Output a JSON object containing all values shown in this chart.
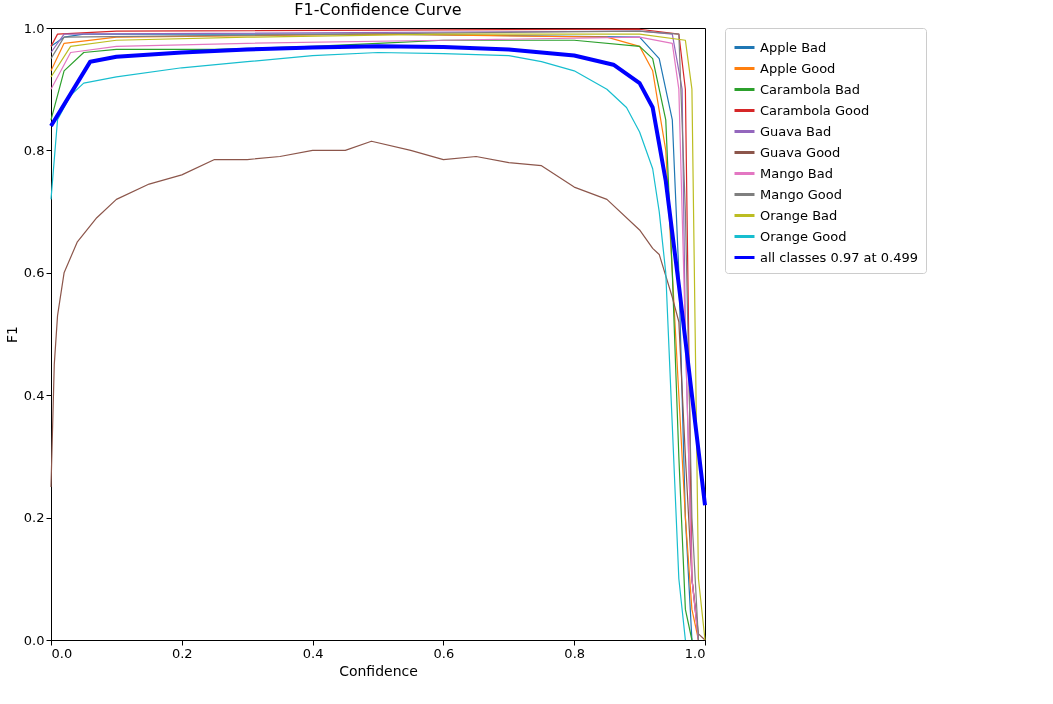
{
  "chart_data": {
    "type": "line",
    "title": "F1-Confidence Curve",
    "xlabel": "Confidence",
    "ylabel": "F1",
    "xlim": [
      0,
      1
    ],
    "ylim": [
      0,
      1
    ],
    "xticks": [
      {
        "value": 0,
        "label": "0.0"
      },
      0.2,
      0.4,
      0.6,
      0.8,
      {
        "value": 1,
        "label": "1.0"
      }
    ],
    "yticks": [
      {
        "value": 0,
        "label": "0.0"
      },
      0.2,
      0.4,
      0.6,
      0.8,
      {
        "value": 1,
        "label": "1.0"
      }
    ],
    "grid": false,
    "legend": "top right",
    "marker": "none",
    "line_style": "solid",
    "series": [
      {
        "name": "Apple Bad",
        "color": "#1f77b4",
        "x": [
          0,
          0.02,
          0.05,
          0.5,
          0.9,
          0.93,
          0.95,
          0.96,
          0.97,
          0.98
        ],
        "values": [
          0.97,
          0.985,
          0.99,
          0.99,
          0.985,
          0.95,
          0.85,
          0.6,
          0.2,
          0
        ]
      },
      {
        "name": "Apple Good",
        "color": "#ff7f0e",
        "x": [
          0,
          0.02,
          0.1,
          0.5,
          0.85,
          0.9,
          0.92,
          0.94,
          0.95,
          0.96,
          0.97,
          0.98,
          0.99
        ],
        "values": [
          0.93,
          0.975,
          0.985,
          0.99,
          0.985,
          0.97,
          0.93,
          0.8,
          0.6,
          0.4,
          0.2,
          0.05,
          0
        ]
      },
      {
        "name": "Carambola Bad",
        "color": "#2ca02c",
        "x": [
          0,
          0.02,
          0.05,
          0.1,
          0.25,
          0.4,
          0.5,
          0.6,
          0.8,
          0.9,
          0.92,
          0.94,
          0.95,
          0.96,
          0.97,
          0.98
        ],
        "values": [
          0.85,
          0.93,
          0.96,
          0.965,
          0.965,
          0.97,
          0.975,
          0.98,
          0.98,
          0.97,
          0.95,
          0.85,
          0.6,
          0.3,
          0.05,
          0
        ]
      },
      {
        "name": "Carambola Good",
        "color": "#d62728",
        "x": [
          0,
          0.01,
          0.1,
          0.9,
          0.96,
          0.97,
          0.975,
          0.98,
          0.99
        ],
        "values": [
          0.97,
          0.99,
          0.995,
          0.998,
          0.99,
          0.9,
          0.5,
          0.1,
          0
        ]
      },
      {
        "name": "Guava Bad",
        "color": "#9467bd",
        "x": [
          0,
          0.02,
          0.9,
          0.95,
          0.965,
          0.97,
          0.98,
          0.99
        ],
        "values": [
          0.96,
          0.99,
          0.995,
          0.99,
          0.9,
          0.5,
          0.1,
          0
        ]
      },
      {
        "name": "Guava Good",
        "color": "#8c564b",
        "x": [
          0,
          0.005,
          0.01,
          0.02,
          0.04,
          0.07,
          0.1,
          0.15,
          0.2,
          0.25,
          0.3,
          0.35,
          0.4,
          0.45,
          0.49,
          0.55,
          0.6,
          0.65,
          0.7,
          0.75,
          0.8,
          0.85,
          0.9,
          0.92,
          0.93,
          0.95,
          0.96,
          0.97,
          0.98,
          0.99,
          1.0
        ],
        "values": [
          0.25,
          0.45,
          0.53,
          0.6,
          0.65,
          0.69,
          0.72,
          0.745,
          0.76,
          0.785,
          0.785,
          0.79,
          0.8,
          0.8,
          0.815,
          0.8,
          0.785,
          0.79,
          0.78,
          0.775,
          0.74,
          0.72,
          0.67,
          0.64,
          0.63,
          0.56,
          0.52,
          0.3,
          0.1,
          0.01,
          0
        ]
      },
      {
        "name": "Mango Bad",
        "color": "#e377c2",
        "x": [
          0,
          0.03,
          0.1,
          0.3,
          0.6,
          0.9,
          0.95,
          0.96,
          0.97,
          0.98,
          0.99
        ],
        "values": [
          0.9,
          0.96,
          0.97,
          0.975,
          0.98,
          0.985,
          0.975,
          0.9,
          0.5,
          0.1,
          0
        ]
      },
      {
        "name": "Mango Good",
        "color": "#7f7f7f",
        "x": [
          0,
          0.02,
          0.9,
          0.96,
          0.97,
          0.98,
          0.99
        ],
        "values": [
          0.95,
          0.985,
          0.995,
          0.99,
          0.7,
          0.2,
          0
        ]
      },
      {
        "name": "Orange Bad",
        "color": "#bcbd22",
        "x": [
          0,
          0.03,
          0.1,
          0.3,
          0.6,
          0.9,
          0.97,
          0.98,
          0.985,
          0.99,
          1.0
        ],
        "values": [
          0.92,
          0.97,
          0.98,
          0.985,
          0.99,
          0.99,
          0.98,
          0.9,
          0.5,
          0.1,
          0
        ]
      },
      {
        "name": "Orange Good",
        "color": "#17becf",
        "x": [
          0,
          0.01,
          0.03,
          0.05,
          0.1,
          0.2,
          0.3,
          0.4,
          0.5,
          0.6,
          0.7,
          0.75,
          0.8,
          0.85,
          0.88,
          0.9,
          0.92,
          0.93,
          0.94,
          0.95,
          0.96,
          0.97
        ],
        "values": [
          0.72,
          0.85,
          0.89,
          0.91,
          0.92,
          0.935,
          0.945,
          0.955,
          0.96,
          0.958,
          0.955,
          0.945,
          0.93,
          0.9,
          0.87,
          0.83,
          0.77,
          0.7,
          0.6,
          0.35,
          0.1,
          0
        ]
      },
      {
        "name": "all classes 0.97 at 0.499",
        "color": "#0000ff",
        "x": [
          0,
          0.06,
          0.1,
          0.2,
          0.3,
          0.4,
          0.5,
          0.6,
          0.7,
          0.8,
          0.86,
          0.9,
          0.92,
          0.94,
          0.96,
          0.98,
          1.0
        ],
        "values": [
          0.84,
          0.945,
          0.953,
          0.96,
          0.965,
          0.968,
          0.97,
          0.969,
          0.965,
          0.955,
          0.94,
          0.91,
          0.87,
          0.75,
          0.58,
          0.4,
          0.22
        ]
      }
    ]
  }
}
